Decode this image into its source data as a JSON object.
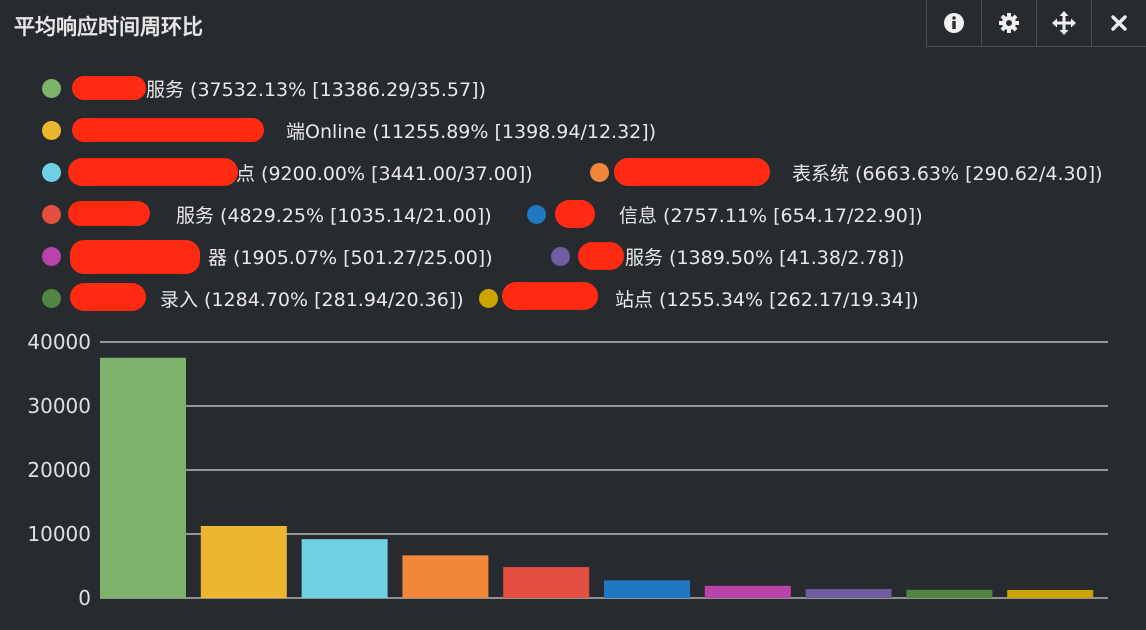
{
  "panel": {
    "title": "平均响应时间周环比",
    "tools": [
      "info-icon",
      "gear-icon",
      "move-icon",
      "close-icon"
    ]
  },
  "legend": [
    {
      "text": "服务 (37532.13% [13386.29/35.57])",
      "color": "#7db36a"
    },
    {
      "text": "端Online (11255.89% [1398.94/12.32])",
      "color": "#ecb72e"
    },
    {
      "text": "点 (9200.00% [3441.00/37.00])",
      "color": "#6fd0e3"
    },
    {
      "text": "表系统 (6663.63% [290.62/4.30])",
      "color": "#f0873a"
    },
    {
      "text": "服务 (4829.25% [1035.14/21.00])",
      "color": "#e4503f"
    },
    {
      "text": "信息 (2757.11% [654.17/22.90])",
      "color": "#1f78c1"
    },
    {
      "text": "器 (1905.07% [501.27/25.00])",
      "color": "#ba43a9"
    },
    {
      "text": "服务 (1389.50% [41.38/2.78])",
      "color": "#705da0"
    },
    {
      "text": "录入 (1284.70% [281.94/20.36])",
      "color": "#508642"
    },
    {
      "text": "站点 (1255.34% [262.17/19.34])",
      "color": "#cca300"
    }
  ],
  "chart_data": {
    "type": "bar",
    "categories": [
      "服务",
      "端Online",
      "点",
      "表系统",
      "服务",
      "信息",
      "器",
      "服务",
      "录入",
      "站点"
    ],
    "values": [
      37532.13,
      11255.89,
      9200.0,
      6663.63,
      4829.25,
      2757.11,
      1905.07,
      1389.5,
      1284.7,
      1255.34
    ],
    "colors": [
      "#7db36a",
      "#ecb72e",
      "#6fd0e3",
      "#f0873a",
      "#e4503f",
      "#1f78c1",
      "#ba43a9",
      "#705da0",
      "#508642",
      "#cca300"
    ],
    "ylim": [
      0,
      40000
    ],
    "yticks": [
      "0",
      "10000",
      "20000",
      "30000",
      "40000"
    ],
    "grid": true,
    "legend_position": "top"
  }
}
